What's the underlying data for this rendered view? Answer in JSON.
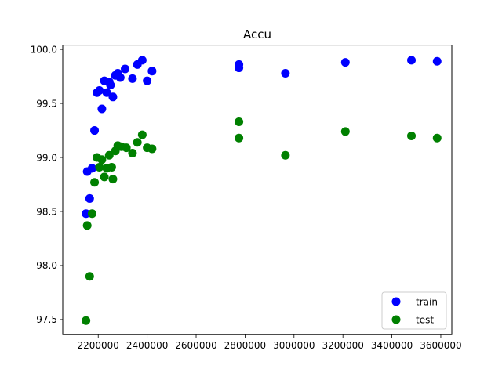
{
  "chart_data": {
    "type": "scatter",
    "title": "Accu",
    "xlabel": "",
    "ylabel": "",
    "xlim": [
      2055000,
      3645000
    ],
    "ylim": [
      97.36,
      100.04
    ],
    "xticks": [
      2200000,
      2400000,
      2600000,
      2800000,
      3000000,
      3200000,
      3400000,
      3600000
    ],
    "xtick_labels": [
      "2200000",
      "2400000",
      "2600000",
      "2800000",
      "3000000",
      "3200000",
      "3400000",
      "3600000"
    ],
    "yticks": [
      97.5,
      98.0,
      98.5,
      99.0,
      99.5,
      100.0
    ],
    "ytick_labels": [
      "97.5",
      "98.0",
      "98.5",
      "99.0",
      "99.5",
      "100.0"
    ],
    "grid": false,
    "legend": "lower-right",
    "series": [
      {
        "name": "train",
        "color": "#0000ff",
        "x": [
          2150000,
          2155000,
          2165000,
          2175000,
          2185000,
          2195000,
          2205000,
          2215000,
          2225000,
          2235000,
          2245000,
          2250000,
          2260000,
          2270000,
          2280000,
          2290000,
          2310000,
          2340000,
          2360000,
          2380000,
          2400000,
          2420000,
          2775000,
          2775000,
          2965000,
          3210000,
          3480000,
          3585000
        ],
        "y": [
          98.48,
          98.87,
          98.62,
          98.9,
          99.25,
          99.6,
          99.62,
          99.45,
          99.71,
          99.6,
          99.7,
          99.67,
          99.56,
          99.76,
          99.78,
          99.74,
          99.82,
          99.73,
          99.86,
          99.9,
          99.71,
          99.8,
          99.86,
          99.83,
          99.78,
          99.88,
          99.9,
          99.89
        ]
      },
      {
        "name": "test",
        "color": "#008000",
        "x": [
          2150000,
          2155000,
          2165000,
          2175000,
          2185000,
          2195000,
          2205000,
          2215000,
          2225000,
          2235000,
          2245000,
          2255000,
          2260000,
          2270000,
          2280000,
          2295000,
          2315000,
          2340000,
          2360000,
          2380000,
          2400000,
          2420000,
          2775000,
          2775000,
          2965000,
          3210000,
          3480000,
          3585000
        ],
        "y": [
          97.49,
          98.37,
          97.9,
          98.48,
          98.77,
          99.0,
          98.91,
          98.98,
          98.82,
          98.9,
          99.02,
          98.91,
          98.8,
          99.06,
          99.11,
          99.1,
          99.09,
          99.04,
          99.14,
          99.21,
          99.09,
          99.08,
          99.33,
          99.18,
          99.02,
          99.24,
          99.2,
          99.18
        ]
      }
    ]
  }
}
